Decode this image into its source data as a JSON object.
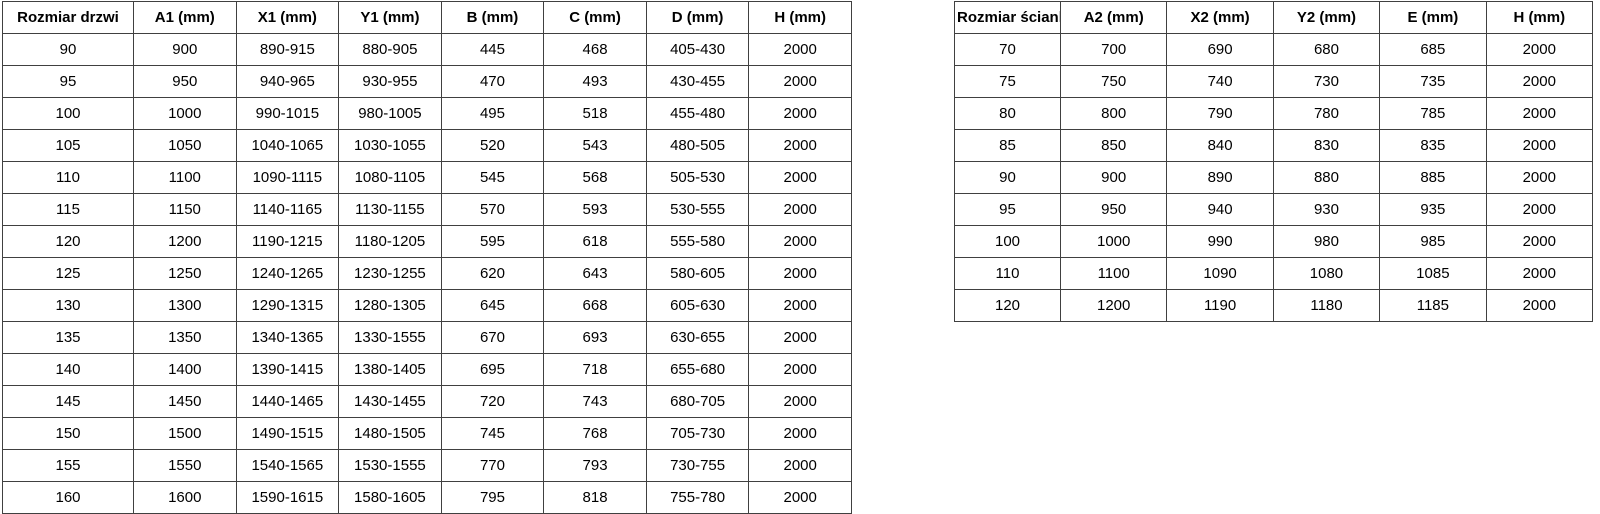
{
  "page": {
    "background_color": "#ffffff",
    "text_color": "#000000",
    "border_color": "#404040"
  },
  "left_table": {
    "headers": [
      "Rozmiar drzwi",
      "A1 (mm)",
      "X1 (mm)",
      "Y1 (mm)",
      "B (mm)",
      "C (mm)",
      "D (mm)",
      "H (mm)"
    ],
    "rows": [
      [
        "90",
        "900",
        "890-915",
        "880-905",
        "445",
        "468",
        "405-430",
        "2000"
      ],
      [
        "95",
        "950",
        "940-965",
        "930-955",
        "470",
        "493",
        "430-455",
        "2000"
      ],
      [
        "100",
        "1000",
        "990-1015",
        "980-1005",
        "495",
        "518",
        "455-480",
        "2000"
      ],
      [
        "105",
        "1050",
        "1040-1065",
        "1030-1055",
        "520",
        "543",
        "480-505",
        "2000"
      ],
      [
        "110",
        "1100",
        "1090-1115",
        "1080-1105",
        "545",
        "568",
        "505-530",
        "2000"
      ],
      [
        "115",
        "1150",
        "1140-1165",
        "1130-1155",
        "570",
        "593",
        "530-555",
        "2000"
      ],
      [
        "120",
        "1200",
        "1190-1215",
        "1180-1205",
        "595",
        "618",
        "555-580",
        "2000"
      ],
      [
        "125",
        "1250",
        "1240-1265",
        "1230-1255",
        "620",
        "643",
        "580-605",
        "2000"
      ],
      [
        "130",
        "1300",
        "1290-1315",
        "1280-1305",
        "645",
        "668",
        "605-630",
        "2000"
      ],
      [
        "135",
        "1350",
        "1340-1365",
        "1330-1555",
        "670",
        "693",
        "630-655",
        "2000"
      ],
      [
        "140",
        "1400",
        "1390-1415",
        "1380-1405",
        "695",
        "718",
        "655-680",
        "2000"
      ],
      [
        "145",
        "1450",
        "1440-1465",
        "1430-1455",
        "720",
        "743",
        "680-705",
        "2000"
      ],
      [
        "150",
        "1500",
        "1490-1515",
        "1480-1505",
        "745",
        "768",
        "705-730",
        "2000"
      ],
      [
        "155",
        "1550",
        "1540-1565",
        "1530-1555",
        "770",
        "793",
        "730-755",
        "2000"
      ],
      [
        "160",
        "1600",
        "1590-1615",
        "1580-1605",
        "795",
        "818",
        "755-780",
        "2000"
      ]
    ]
  },
  "right_table": {
    "headers": [
      "Rozmiar ścianki",
      "A2 (mm)",
      "X2 (mm)",
      "Y2 (mm)",
      "E (mm)",
      "H (mm)"
    ],
    "rows": [
      [
        "70",
        "700",
        "690",
        "680",
        "685",
        "2000"
      ],
      [
        "75",
        "750",
        "740",
        "730",
        "735",
        "2000"
      ],
      [
        "80",
        "800",
        "790",
        "780",
        "785",
        "2000"
      ],
      [
        "85",
        "850",
        "840",
        "830",
        "835",
        "2000"
      ],
      [
        "90",
        "900",
        "890",
        "880",
        "885",
        "2000"
      ],
      [
        "95",
        "950",
        "940",
        "930",
        "935",
        "2000"
      ],
      [
        "100",
        "1000",
        "990",
        "980",
        "985",
        "2000"
      ],
      [
        "110",
        "1100",
        "1090",
        "1080",
        "1085",
        "2000"
      ],
      [
        "120",
        "1200",
        "1190",
        "1180",
        "1185",
        "2000"
      ]
    ]
  }
}
